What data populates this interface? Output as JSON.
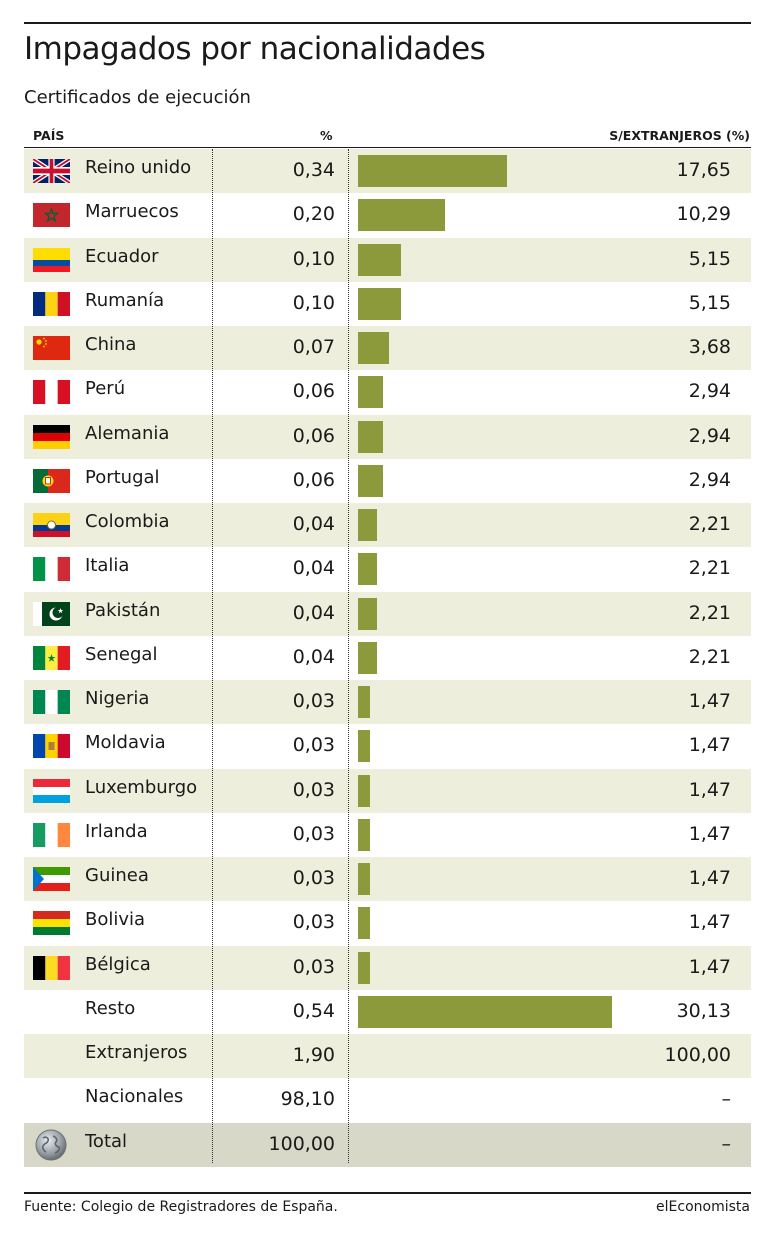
{
  "chart_data": {
    "type": "table",
    "title": "Impagados por nacionalidades",
    "subtitle": "Certificados de ejecución",
    "columns": {
      "country": "PAÍS",
      "pct": "%",
      "share": "S/EXTRANJEROS (%)"
    },
    "rows": [
      {
        "name": "Reino unido",
        "pct": "0,34",
        "share": "17,65",
        "share_value": 17.65,
        "icon": "uk-flag-icon"
      },
      {
        "name": "Marruecos",
        "pct": "0,20",
        "share": "10,29",
        "share_value": 10.29,
        "icon": "morocco-flag-icon"
      },
      {
        "name": "Ecuador",
        "pct": "0,10",
        "share": "5,15",
        "share_value": 5.15,
        "icon": "ecuador-flag-icon"
      },
      {
        "name": "Rumanía",
        "pct": "0,10",
        "share": "5,15",
        "share_value": 5.15,
        "icon": "romania-flag-icon"
      },
      {
        "name": "China",
        "pct": "0,07",
        "share": "3,68",
        "share_value": 3.68,
        "icon": "china-flag-icon"
      },
      {
        "name": "Perú",
        "pct": "0,06",
        "share": "2,94",
        "share_value": 2.94,
        "icon": "peru-flag-icon"
      },
      {
        "name": "Alemania",
        "pct": "0,06",
        "share": "2,94",
        "share_value": 2.94,
        "icon": "germany-flag-icon"
      },
      {
        "name": "Portugal",
        "pct": "0,06",
        "share": "2,94",
        "share_value": 2.94,
        "icon": "portugal-flag-icon"
      },
      {
        "name": "Colombia",
        "pct": "0,04",
        "share": "2,21",
        "share_value": 2.21,
        "icon": "colombia-flag-icon"
      },
      {
        "name": "Italia",
        "pct": "0,04",
        "share": "2,21",
        "share_value": 2.21,
        "icon": "italy-flag-icon"
      },
      {
        "name": "Pakistán",
        "pct": "0,04",
        "share": "2,21",
        "share_value": 2.21,
        "icon": "pakistan-flag-icon"
      },
      {
        "name": "Senegal",
        "pct": "0,04",
        "share": "2,21",
        "share_value": 2.21,
        "icon": "senegal-flag-icon"
      },
      {
        "name": "Nigeria",
        "pct": "0,03",
        "share": "1,47",
        "share_value": 1.47,
        "icon": "nigeria-flag-icon"
      },
      {
        "name": "Moldavia",
        "pct": "0,03",
        "share": "1,47",
        "share_value": 1.47,
        "icon": "moldova-flag-icon"
      },
      {
        "name": "Luxemburgo",
        "pct": "0,03",
        "share": "1,47",
        "share_value": 1.47,
        "icon": "luxembourg-flag-icon"
      },
      {
        "name": "Irlanda",
        "pct": "0,03",
        "share": "1,47",
        "share_value": 1.47,
        "icon": "ireland-flag-icon"
      },
      {
        "name": "Guinea",
        "pct": "0,03",
        "share": "1,47",
        "share_value": 1.47,
        "icon": "equatorial-guinea-flag-icon"
      },
      {
        "name": "Bolivia",
        "pct": "0,03",
        "share": "1,47",
        "share_value": 1.47,
        "icon": "bolivia-flag-icon"
      },
      {
        "name": "Bélgica",
        "pct": "0,03",
        "share": "1,47",
        "share_value": 1.47,
        "icon": "belgium-flag-icon"
      },
      {
        "name": "Resto",
        "pct": "0,54",
        "share": "30,13",
        "share_value": 30.13
      },
      {
        "name": "Extranjeros",
        "pct": "1,90",
        "share": "100,00"
      },
      {
        "name": "Nacionales",
        "pct": "98,10",
        "share": "–"
      },
      {
        "name": "Total",
        "pct": "100,00",
        "share": "–",
        "icon": "globe-icon"
      }
    ]
  },
  "footer": {
    "source": "Fuente: Colegio de Registradores de España.",
    "brand": "elEconomista"
  },
  "colors": {
    "bar": "#8c9a3b",
    "row_alt": "#eeeedd",
    "row_total": "#d8d8c8"
  }
}
